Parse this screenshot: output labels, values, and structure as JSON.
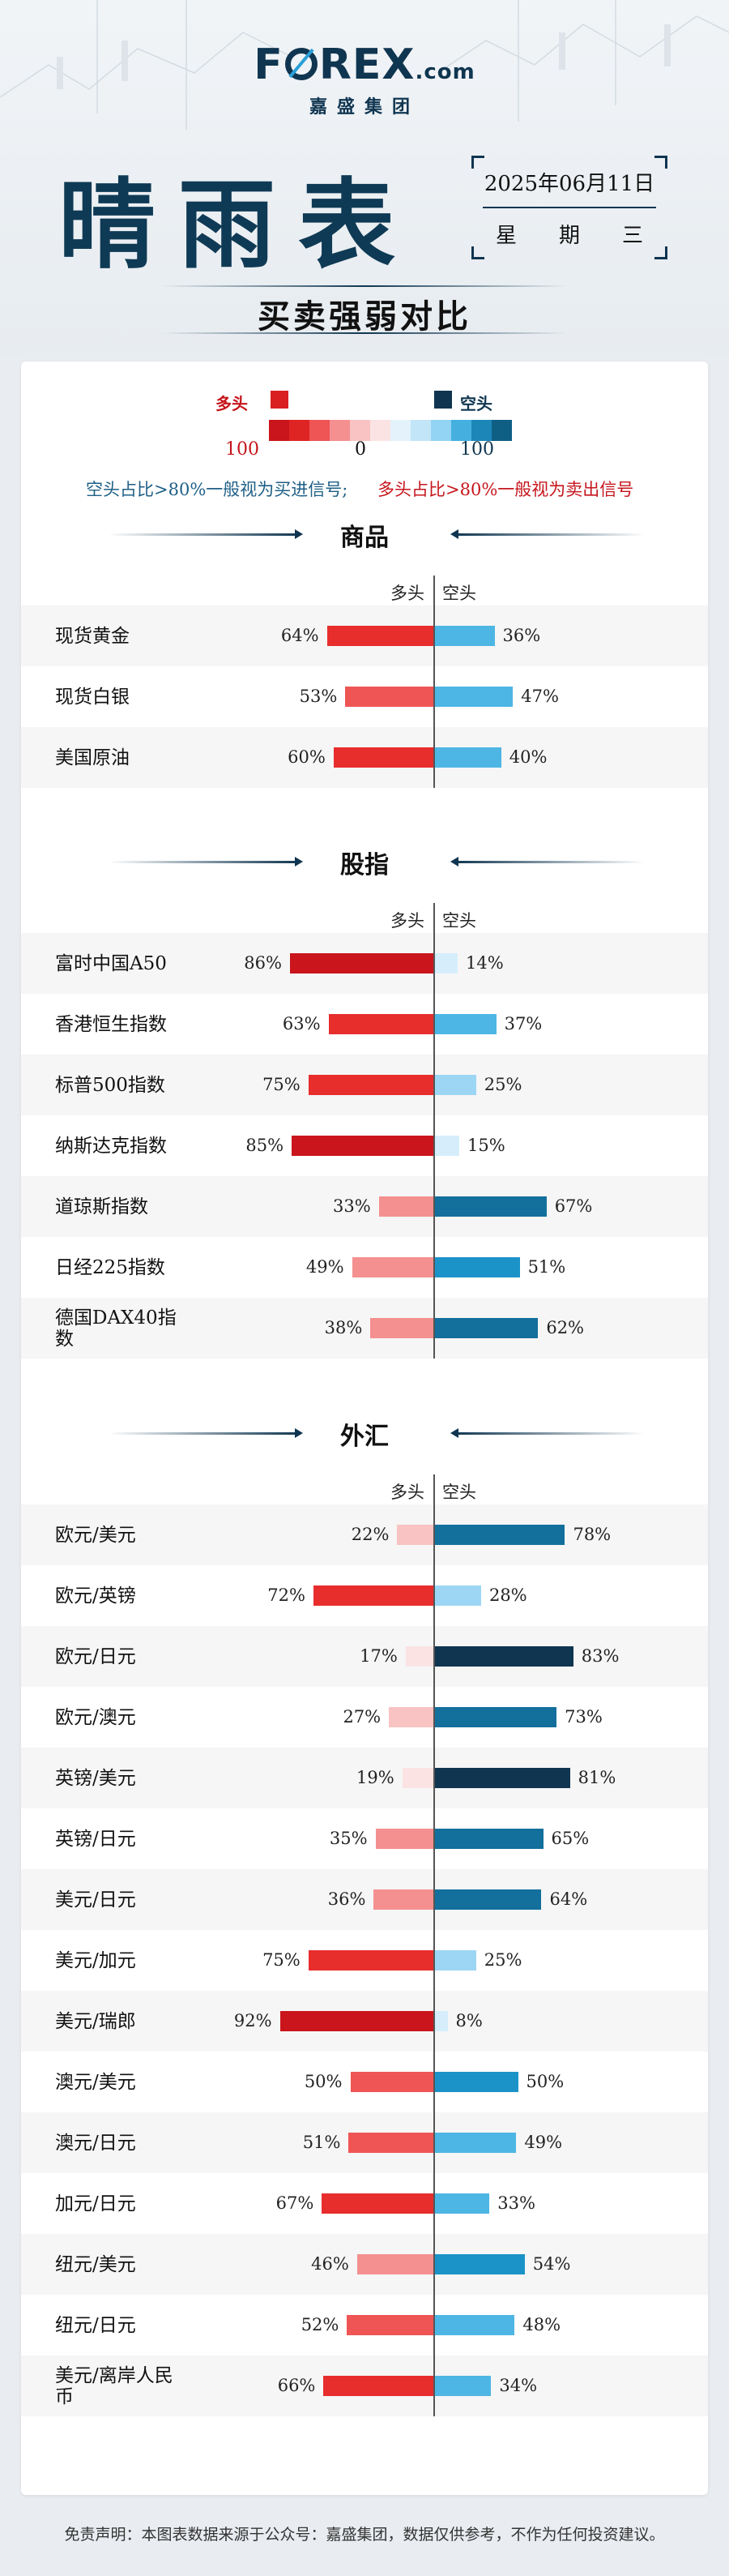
{
  "brand": {
    "logo_left": "F",
    "logo_right": "REX",
    "logo_suffix": ".com",
    "logo_sub": "嘉盛集团"
  },
  "header": {
    "title": "晴雨表",
    "date": "2025年06月11日",
    "weekday": [
      "星",
      "期",
      "三"
    ],
    "subtitle": "买卖强弱对比"
  },
  "legend": {
    "long_label": "多头",
    "short_label": "空头",
    "min": "100",
    "zero": "0",
    "max": "100",
    "strip_colors": [
      "#c9151b",
      "#df2424",
      "#ef5555",
      "#f49090",
      "#f9c3c3",
      "#fbe3e3",
      "#e3f2fb",
      "#c2e5f8",
      "#93d3f3",
      "#45b0e0",
      "#1c86b8",
      "#0f5f85"
    ],
    "note_buy": "空头占比>80%一般视为买进信号;",
    "note_sell": "多头占比>80%一般视为卖出信号"
  },
  "colors": {
    "long": [
      "#fbe3e3",
      "#f9c3c3",
      "#f49090",
      "#ef5555",
      "#e82d2d",
      "#c9151b"
    ],
    "short": [
      "#d6eefb",
      "#9dd6f5",
      "#4db6e4",
      "#1c93c8",
      "#136f9c",
      "#0f3550"
    ]
  },
  "column_headers": {
    "long": "多头",
    "short": "空头"
  },
  "footer": "免责声明：本图表数据来源于公众号：嘉盛集团，数据仅供参考，不作为任何投资建议。",
  "chart_data": [
    {
      "type": "bar",
      "title": "商品",
      "categories": [
        "现货黄金",
        "现货白银",
        "美国原油"
      ],
      "series": [
        {
          "name": "多头",
          "values": [
            64,
            53,
            60
          ]
        },
        {
          "name": "空头",
          "values": [
            36,
            47,
            40
          ]
        }
      ],
      "ylim": [
        0,
        100
      ]
    },
    {
      "type": "bar",
      "title": "股指",
      "categories": [
        "富时中国A50",
        "香港恒生指数",
        "标普500指数",
        "纳斯达克指数",
        "道琼斯指数",
        "日经225指数",
        "德国DAX40指数"
      ],
      "series": [
        {
          "name": "多头",
          "values": [
            86,
            63,
            75,
            85,
            33,
            49,
            38
          ]
        },
        {
          "name": "空头",
          "values": [
            14,
            37,
            25,
            15,
            67,
            51,
            62
          ]
        }
      ],
      "ylim": [
        0,
        100
      ]
    },
    {
      "type": "bar",
      "title": "外汇",
      "categories": [
        "欧元/美元",
        "欧元/英镑",
        "欧元/日元",
        "欧元/澳元",
        "英镑/美元",
        "英镑/日元",
        "美元/日元",
        "美元/加元",
        "美元/瑞郎",
        "澳元/美元",
        "澳元/日元",
        "加元/日元",
        "纽元/美元",
        "纽元/日元",
        "美元/离岸人民币"
      ],
      "series": [
        {
          "name": "多头",
          "values": [
            22,
            72,
            17,
            27,
            19,
            35,
            36,
            75,
            92,
            50,
            51,
            67,
            46,
            52,
            66
          ]
        },
        {
          "name": "空头",
          "values": [
            78,
            28,
            83,
            73,
            81,
            65,
            64,
            25,
            8,
            50,
            49,
            33,
            54,
            48,
            34
          ]
        }
      ],
      "ylim": [
        0,
        100
      ]
    }
  ]
}
